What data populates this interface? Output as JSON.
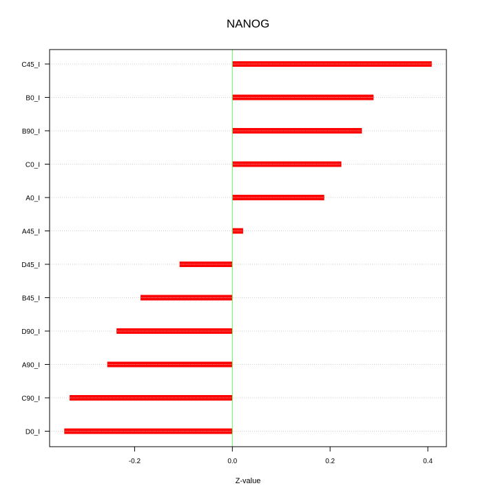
{
  "chart_data": {
    "type": "bar",
    "orientation": "horizontal",
    "title": "NANOG",
    "xlabel": "Z-value",
    "ylabel": "",
    "categories": [
      "C45_I",
      "B0_I",
      "B90_I",
      "C0_I",
      "A0_I",
      "A45_I",
      "D45_I",
      "B45_I",
      "D90_I",
      "A90_I",
      "C90_I",
      "D0_I"
    ],
    "values": [
      0.408,
      0.289,
      0.265,
      0.223,
      0.188,
      0.022,
      -0.108,
      -0.188,
      -0.237,
      -0.256,
      -0.333,
      -0.344
    ],
    "xticks": [
      -0.2,
      0.0,
      0.2,
      0.4
    ],
    "xtick_labels": [
      "-0.2",
      "0.0",
      "0.2",
      "0.4"
    ],
    "xlim": [
      -0.374,
      0.438
    ],
    "zero_line": 0.0,
    "grid": "horizontal dotted",
    "colors": {
      "bar": "#ff0000",
      "bar_highlight": "#ffaaaa",
      "zero_line": "#66ee66",
      "grid": "#cccccc",
      "axis": "#000000",
      "text": "#000000"
    }
  }
}
